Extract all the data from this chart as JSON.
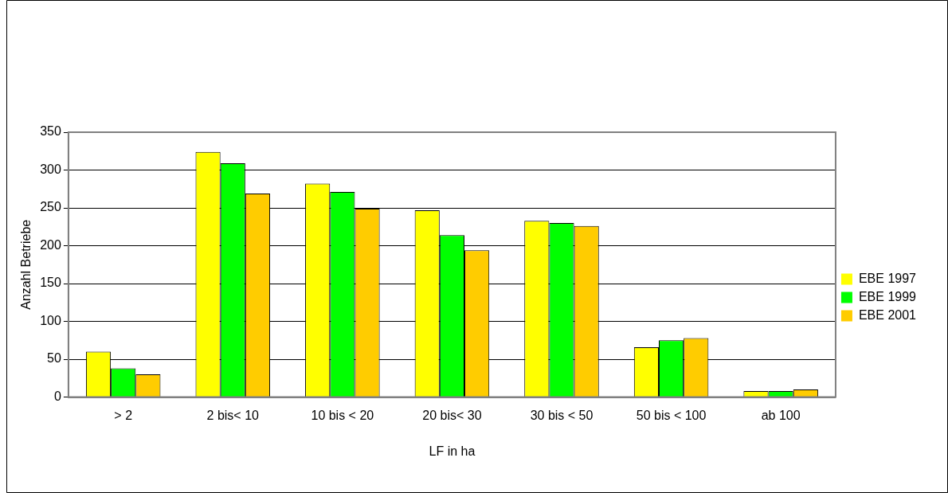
{
  "chart_data": {
    "type": "bar",
    "xlabel": "LF in ha",
    "ylabel": "Anzahl Betriebe",
    "categories": [
      "> 2",
      "2 bis< 10",
      "10 bis < 20",
      "20 bis< 30",
      "30 bis < 50",
      "50 bis < 100",
      "ab 100"
    ],
    "series": [
      {
        "name": "EBE 1997",
        "color": "#ffff00",
        "values": [
          60,
          324,
          282,
          247,
          233,
          66,
          8
        ]
      },
      {
        "name": "EBE 1999",
        "color": "#00ff00",
        "values": [
          38,
          309,
          271,
          214,
          230,
          75,
          8
        ]
      },
      {
        "name": "EBE 2001",
        "color": "#ffcc00",
        "values": [
          30,
          269,
          249,
          194,
          226,
          78,
          10
        ]
      }
    ],
    "ylim": [
      0,
      350
    ],
    "yticks": [
      0,
      50,
      100,
      150,
      200,
      250,
      300,
      350
    ],
    "grid": "y",
    "legend": "right"
  }
}
